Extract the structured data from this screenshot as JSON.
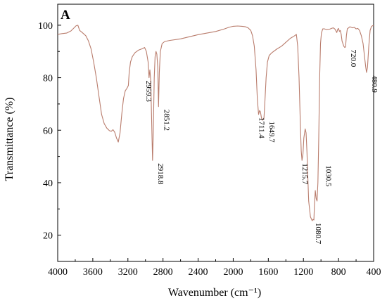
{
  "chart_data": {
    "type": "line",
    "panel_label": "A",
    "xlabel": "Wavenumber (cm⁻¹)",
    "ylabel": "Transmittance (%)",
    "xlim": [
      4000,
      400
    ],
    "ylim": [
      10,
      108
    ],
    "x_reversed": true,
    "grid": false,
    "x_ticks": [
      4000,
      3600,
      3200,
      2800,
      2400,
      2000,
      1600,
      1200,
      800,
      400
    ],
    "y_ticks": [
      20,
      40,
      60,
      80,
      100
    ],
    "line_color": "#b97c6c",
    "series": [
      {
        "points": [
          [
            4000,
            96.5
          ],
          [
            3950,
            96.8
          ],
          [
            3900,
            97.0
          ],
          [
            3850,
            97.8
          ],
          [
            3820,
            98.8
          ],
          [
            3790,
            99.8
          ],
          [
            3770,
            100.0
          ],
          [
            3750,
            98.0
          ],
          [
            3720,
            97.2
          ],
          [
            3680,
            96.0
          ],
          [
            3650,
            94.0
          ],
          [
            3620,
            91.0
          ],
          [
            3590,
            86.0
          ],
          [
            3560,
            80.0
          ],
          [
            3530,
            73.0
          ],
          [
            3500,
            66.0
          ],
          [
            3470,
            62.5
          ],
          [
            3440,
            60.8
          ],
          [
            3410,
            59.8
          ],
          [
            3390,
            59.6
          ],
          [
            3370,
            60.2
          ],
          [
            3350,
            59.2
          ],
          [
            3330,
            57.0
          ],
          [
            3310,
            55.5
          ],
          [
            3290,
            59.0
          ],
          [
            3270,
            66.0
          ],
          [
            3250,
            72.0
          ],
          [
            3230,
            75.0
          ],
          [
            3210,
            76.0
          ],
          [
            3195,
            77.0
          ],
          [
            3185,
            82.0
          ],
          [
            3170,
            86.0
          ],
          [
            3150,
            88.0
          ],
          [
            3120,
            89.5
          ],
          [
            3080,
            90.5
          ],
          [
            3040,
            91.0
          ],
          [
            3010,
            91.5
          ],
          [
            2990,
            90.0
          ],
          [
            2970,
            86.0
          ],
          [
            2959,
            80.0
          ],
          [
            2950,
            83.0
          ],
          [
            2940,
            79.0
          ],
          [
            2930,
            64.0
          ],
          [
            2919,
            48.5
          ],
          [
            2910,
            60.0
          ],
          [
            2900,
            80.0
          ],
          [
            2890,
            88.0
          ],
          [
            2880,
            90.0
          ],
          [
            2870,
            89.0
          ],
          [
            2860,
            84.0
          ],
          [
            2851,
            69.0
          ],
          [
            2842,
            82.0
          ],
          [
            2830,
            90.0
          ],
          [
            2810,
            93.0
          ],
          [
            2780,
            93.8
          ],
          [
            2720,
            94.2
          ],
          [
            2600,
            94.8
          ],
          [
            2500,
            95.6
          ],
          [
            2400,
            96.4
          ],
          [
            2300,
            97.0
          ],
          [
            2200,
            97.6
          ],
          [
            2100,
            98.6
          ],
          [
            2050,
            99.2
          ],
          [
            2000,
            99.6
          ],
          [
            1950,
            99.7
          ],
          [
            1900,
            99.6
          ],
          [
            1860,
            99.4
          ],
          [
            1830,
            99.0
          ],
          [
            1800,
            98.0
          ],
          [
            1780,
            96.0
          ],
          [
            1760,
            92.0
          ],
          [
            1740,
            83.0
          ],
          [
            1725,
            72.0
          ],
          [
            1711,
            66.0
          ],
          [
            1700,
            67.5
          ],
          [
            1690,
            67.0
          ],
          [
            1680,
            65.0
          ],
          [
            1670,
            63.8
          ],
          [
            1650,
            64.5
          ],
          [
            1640,
            70.0
          ],
          [
            1625,
            80.0
          ],
          [
            1610,
            86.0
          ],
          [
            1590,
            88.5
          ],
          [
            1560,
            89.5
          ],
          [
            1500,
            91.0
          ],
          [
            1450,
            92.0
          ],
          [
            1400,
            93.5
          ],
          [
            1350,
            95.0
          ],
          [
            1300,
            96.0
          ],
          [
            1280,
            96.5
          ],
          [
            1265,
            92.0
          ],
          [
            1250,
            80.0
          ],
          [
            1235,
            62.0
          ],
          [
            1225,
            52.0
          ],
          [
            1216,
            48.5
          ],
          [
            1205,
            51.0
          ],
          [
            1195,
            57.0
          ],
          [
            1180,
            60.5
          ],
          [
            1170,
            59.0
          ],
          [
            1160,
            52.0
          ],
          [
            1150,
            42.0
          ],
          [
            1140,
            33.0
          ],
          [
            1120,
            27.0
          ],
          [
            1100,
            25.5
          ],
          [
            1090,
            26.0
          ],
          [
            1081,
            25.8
          ],
          [
            1075,
            31.0
          ],
          [
            1065,
            37.0
          ],
          [
            1055,
            34.0
          ],
          [
            1045,
            33.0
          ],
          [
            1035,
            40.0
          ],
          [
            1025,
            57.0
          ],
          [
            1015,
            80.0
          ],
          [
            1005,
            93.0
          ],
          [
            995,
            97.0
          ],
          [
            980,
            98.6
          ],
          [
            960,
            98.6
          ],
          [
            940,
            98.4
          ],
          [
            900,
            98.5
          ],
          [
            880,
            98.8
          ],
          [
            860,
            99.0
          ],
          [
            840,
            98.5
          ],
          [
            820,
            97.2
          ],
          [
            810,
            98.4
          ],
          [
            800,
            98.8
          ],
          [
            790,
            97.6
          ],
          [
            780,
            98.0
          ],
          [
            770,
            96.5
          ],
          [
            760,
            94.0
          ],
          [
            740,
            92.0
          ],
          [
            728,
            91.5
          ],
          [
            720,
            91.8
          ],
          [
            710,
            96.0
          ],
          [
            700,
            98.6
          ],
          [
            670,
            99.4
          ],
          [
            640,
            99.0
          ],
          [
            620,
            99.2
          ],
          [
            600,
            98.6
          ],
          [
            580,
            98.8
          ],
          [
            560,
            98.0
          ],
          [
            540,
            96.0
          ],
          [
            520,
            93.0
          ],
          [
            500,
            87.0
          ],
          [
            490,
            84.0
          ],
          [
            481,
            82.0
          ],
          [
            470,
            84.0
          ],
          [
            455,
            92.0
          ],
          [
            440,
            98.0
          ],
          [
            425,
            99.5
          ],
          [
            412,
            99.8
          ],
          [
            400,
            99.8
          ]
        ]
      }
    ],
    "annotations": [
      {
        "text": "2959.3",
        "x": 2959
      },
      {
        "text": "2918.8",
        "x": 2919
      },
      {
        "text": "2851.2",
        "x": 2851
      },
      {
        "text": "1711.4",
        "x": 1711
      },
      {
        "text": "1649.7",
        "x": 1650
      },
      {
        "text": "1215.7",
        "x": 1216
      },
      {
        "text": "1080.7",
        "x": 1081
      },
      {
        "text": "1030.5",
        "x": 1030
      },
      {
        "text": "720.0",
        "x": 720
      },
      {
        "text": "480.9",
        "x": 481
      }
    ]
  }
}
